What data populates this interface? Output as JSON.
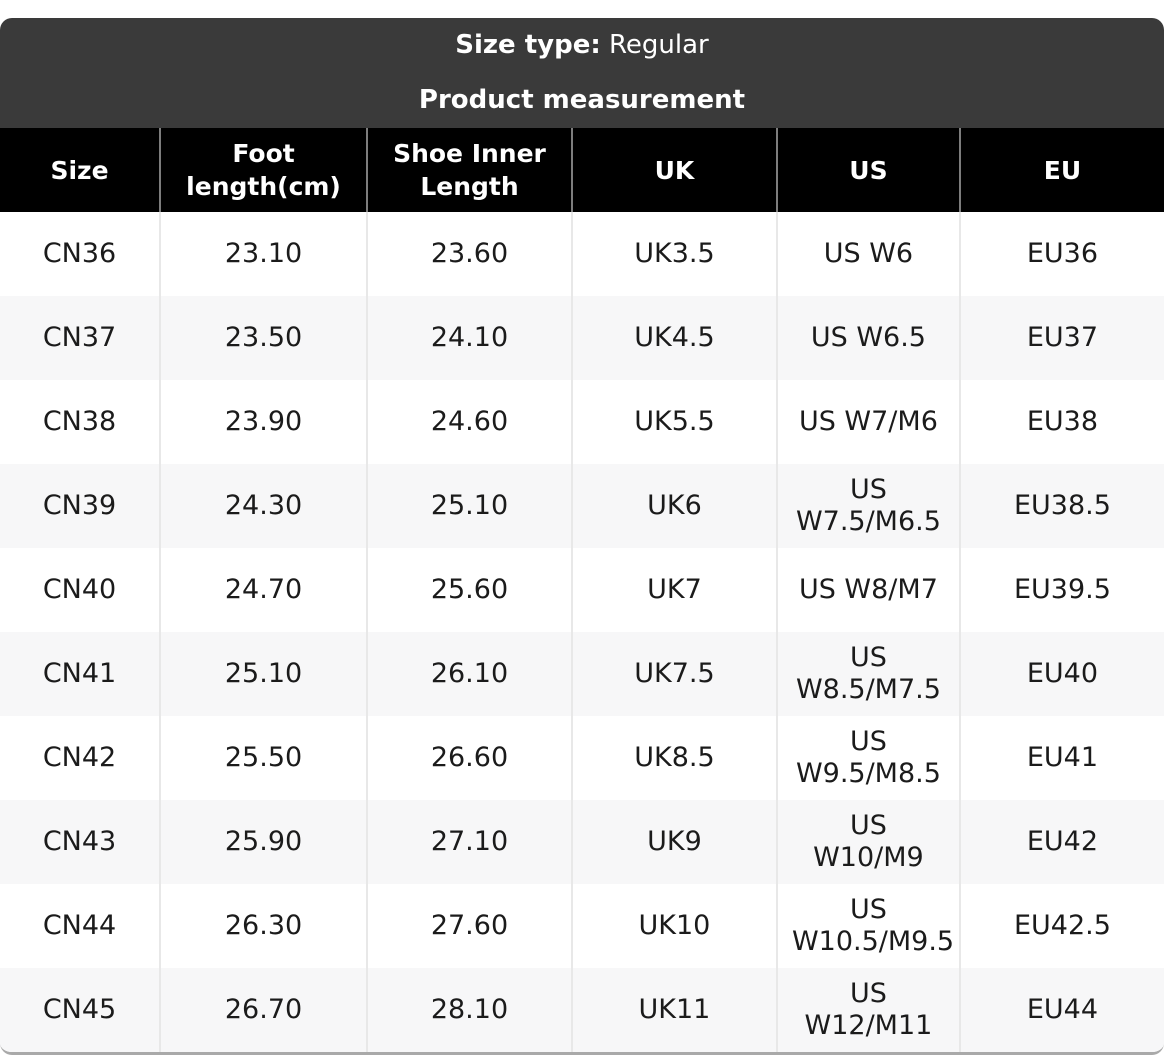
{
  "header": {
    "size_type_label": "Size type:",
    "size_type_value": "Regular",
    "title": "Product measurement"
  },
  "table": {
    "columns": [
      "Size",
      "Foot length(cm)",
      "Shoe Inner Length",
      "UK",
      "US",
      "EU"
    ],
    "rows": [
      [
        "CN36",
        "23.10",
        "23.60",
        "UK3.5",
        "US W6",
        "EU36"
      ],
      [
        "CN37",
        "23.50",
        "24.10",
        "UK4.5",
        "US W6.5",
        "EU37"
      ],
      [
        "CN38",
        "23.90",
        "24.60",
        "UK5.5",
        "US W7/M6",
        "EU38"
      ],
      [
        "CN39",
        "24.30",
        "25.10",
        "UK6",
        "US W7.5/M6.5",
        "EU38.5"
      ],
      [
        "CN40",
        "24.70",
        "25.60",
        "UK7",
        "US W8/M7",
        "EU39.5"
      ],
      [
        "CN41",
        "25.10",
        "26.10",
        "UK7.5",
        "US W8.5/M7.5",
        "EU40"
      ],
      [
        "CN42",
        "25.50",
        "26.60",
        "UK8.5",
        "US W9.5/M8.5",
        "EU41"
      ],
      [
        "CN43",
        "25.90",
        "27.10",
        "UK9",
        "US W10/M9",
        "EU42"
      ],
      [
        "CN44",
        "26.30",
        "27.60",
        "UK10",
        "US W10.5/M9.5",
        "EU42.5"
      ],
      [
        "CN45",
        "26.70",
        "28.10",
        "UK11",
        "US W12/M11",
        "EU44"
      ]
    ]
  },
  "colors": {
    "top_header_bg": "#3a3a3a",
    "column_header_bg": "#000000",
    "column_header_divider": "#7d7d7d",
    "body_divider": "#e8e8e8",
    "alt_row_bg": "#f7f7f8",
    "bottom_edge": "#a9a9a9",
    "text": "#1b1b1b"
  }
}
